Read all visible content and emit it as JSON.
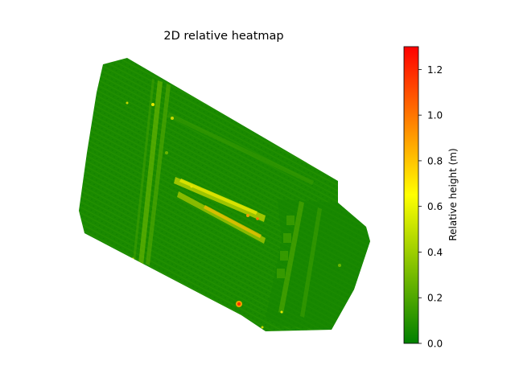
{
  "chart_data": {
    "type": "heatmap",
    "title": "2D relative heatmap",
    "xlabel": "",
    "ylabel": "",
    "axes_visible": false,
    "grid": false,
    "colorbar": {
      "label": "Relative height (m)",
      "range": [
        0.0,
        1.3
      ],
      "ticks": [
        0.0,
        0.2,
        0.4,
        0.6,
        0.8,
        1.0,
        1.2
      ],
      "tick_labels": [
        "0.0",
        "0.2",
        "0.4",
        "0.6",
        "0.8",
        "1.0",
        "1.2"
      ],
      "colormap": [
        {
          "value": 0.0,
          "color": "#008000"
        },
        {
          "value": 0.65,
          "color": "#ffff00"
        },
        {
          "value": 1.3,
          "color": "#ff0000"
        }
      ],
      "position": "right"
    },
    "features": {
      "base_level": 0.08,
      "highlight_level_low": 0.4,
      "highlight_level_mid": 0.7,
      "highlight_level_high": 1.0
    }
  },
  "colors": {
    "base_green": "#1a8a00",
    "dark_green": "#0f7a00",
    "mid_green": "#3a9a00",
    "light_green": "#7ac000",
    "yellow": "#e8e800",
    "orange": "#f0a000",
    "red": "#ff2000"
  }
}
